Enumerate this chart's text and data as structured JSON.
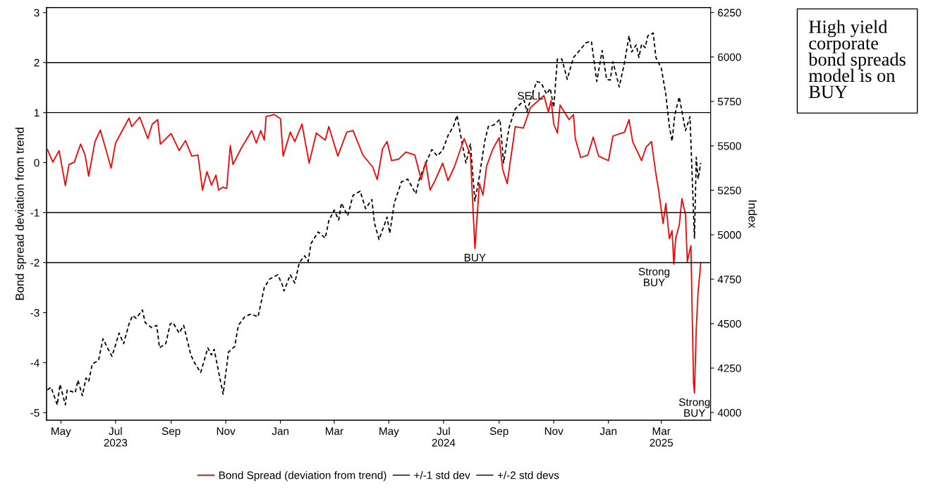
{
  "chart_data": {
    "type": "line",
    "title": "High yield\ncorporate\nbond spreads\nmodel is on\nBUY",
    "ylabel": "Bond spread deviation from trend",
    "y2label": "Index",
    "xlim": [
      "2023-04-15",
      "2025-04-25"
    ],
    "xticks": [
      {
        "value": "2023-05-01",
        "label": "May"
      },
      {
        "value": "2023-07-01",
        "label": "Jul\n2023"
      },
      {
        "value": "2023-09-01",
        "label": "Sep"
      },
      {
        "value": "2023-11-01",
        "label": "Nov"
      },
      {
        "value": "2024-01-01",
        "label": "Jan"
      },
      {
        "value": "2024-03-01",
        "label": "Mar"
      },
      {
        "value": "2024-05-01",
        "label": "May"
      },
      {
        "value": "2024-07-01",
        "label": "Jul\n2024"
      },
      {
        "value": "2024-09-01",
        "label": "Sep"
      },
      {
        "value": "2024-11-01",
        "label": "Nov"
      },
      {
        "value": "2025-01-01",
        "label": "Jan"
      },
      {
        "value": "2025-03-01",
        "label": "Mar\n2025"
      }
    ],
    "ylim": [
      -5.15,
      3.1
    ],
    "yticks": [
      -5,
      -4,
      -3,
      -2,
      -1,
      0,
      1,
      2,
      3
    ],
    "y2lim": [
      3957,
      6278
    ],
    "y2ticks": [
      4000,
      4250,
      4500,
      4750,
      5000,
      5250,
      5500,
      5750,
      6000,
      6250
    ],
    "grid": false,
    "legend": "bottom",
    "series": [
      {
        "color": "#000000",
        "axis": "y2",
        "line_style": "dashed",
        "x": [
          "2023-04-16",
          "2023-04-20",
          "2023-04-27",
          "2023-04-30",
          "2023-05-06",
          "2023-05-08",
          "2023-05-17",
          "2023-05-20",
          "2023-05-25",
          "2023-05-29",
          "2023-06-01",
          "2023-06-05",
          "2023-06-12",
          "2023-06-17",
          "2023-06-22",
          "2023-06-27",
          "2023-07-05",
          "2023-07-10",
          "2023-07-16",
          "2023-07-20",
          "2023-07-24",
          "2023-07-31",
          "2023-08-03",
          "2023-08-10",
          "2023-08-16",
          "2023-08-19",
          "2023-08-26",
          "2023-08-31",
          "2023-09-03",
          "2023-09-10",
          "2023-09-15",
          "2023-09-23",
          "2023-09-27",
          "2023-10-04",
          "2023-10-12",
          "2023-10-16",
          "2023-10-19",
          "2023-10-29",
          "2023-11-04",
          "2023-11-11",
          "2023-11-15",
          "2023-11-22",
          "2023-11-29",
          "2023-12-07",
          "2023-12-14",
          "2023-12-20",
          "2023-12-29",
          "2024-01-03",
          "2024-01-05",
          "2024-01-12",
          "2024-01-17",
          "2024-01-22",
          "2024-01-28",
          "2024-02-01",
          "2024-02-04",
          "2024-02-12",
          "2024-02-20",
          "2024-02-24",
          "2024-03-01",
          "2024-03-06",
          "2024-03-09",
          "2024-03-16",
          "2024-03-22",
          "2024-03-30",
          "2024-04-05",
          "2024-04-12",
          "2024-04-15",
          "2024-04-20",
          "2024-04-29",
          "2024-05-02",
          "2024-05-07",
          "2024-05-15",
          "2024-05-22",
          "2024-05-31",
          "2024-06-04",
          "2024-06-12",
          "2024-06-18",
          "2024-06-24",
          "2024-06-30",
          "2024-07-06",
          "2024-07-12",
          "2024-07-16",
          "2024-07-21",
          "2024-07-26",
          "2024-07-31",
          "2024-08-05",
          "2024-08-10",
          "2024-08-16",
          "2024-08-20",
          "2024-08-26",
          "2024-09-02",
          "2024-09-06",
          "2024-09-12",
          "2024-09-19",
          "2024-09-29",
          "2024-10-02",
          "2024-10-08",
          "2024-10-13",
          "2024-10-18",
          "2024-10-24",
          "2024-10-28",
          "2024-11-01",
          "2024-11-05",
          "2024-11-10",
          "2024-11-16",
          "2024-11-23",
          "2024-12-01",
          "2024-12-07",
          "2024-12-13",
          "2024-12-19",
          "2024-12-25",
          "2024-12-30",
          "2025-01-03",
          "2025-01-06",
          "2025-01-09",
          "2025-01-13",
          "2025-01-19",
          "2025-01-24",
          "2025-01-27",
          "2025-02-01",
          "2025-02-04",
          "2025-02-07",
          "2025-02-11",
          "2025-02-14",
          "2025-02-20",
          "2025-02-23",
          "2025-03-01",
          "2025-03-06",
          "2025-03-10",
          "2025-03-13",
          "2025-03-16",
          "2025-03-21",
          "2025-03-28",
          "2025-04-02",
          "2025-04-07",
          "2025-04-09",
          "2025-04-11",
          "2025-04-14"
        ],
        "values": [
          4127,
          4142,
          4043,
          4158,
          4043,
          4127,
          4111,
          4182,
          4095,
          4194,
          4174,
          4273,
          4293,
          4415,
          4364,
          4316,
          4447,
          4387,
          4498,
          4546,
          4530,
          4577,
          4506,
          4478,
          4490,
          4364,
          4387,
          4498,
          4506,
          4447,
          4490,
          4324,
          4281,
          4225,
          4364,
          4324,
          4356,
          4103,
          4340,
          4372,
          4490,
          4538,
          4554,
          4538,
          4704,
          4751,
          4775,
          4720,
          4684,
          4775,
          4728,
          4842,
          4882,
          4850,
          4949,
          5016,
          4981,
          5079,
          5139,
          5083,
          5178,
          5107,
          5222,
          5245,
          5147,
          5198,
          5064,
          4973,
          5099,
          5008,
          5178,
          5297,
          5313,
          5230,
          5313,
          5412,
          5479,
          5443,
          5475,
          5558,
          5609,
          5672,
          5534,
          5404,
          5511,
          5190,
          5329,
          5526,
          5609,
          5617,
          5649,
          5404,
          5601,
          5708,
          5756,
          5692,
          5791,
          5862,
          5854,
          5791,
          5823,
          5716,
          5989,
          5989,
          5874,
          5997,
          6044,
          6080,
          6088,
          5862,
          6036,
          5874,
          5870,
          5973,
          5914,
          5831,
          5969,
          6119,
          6028,
          6068,
          5997,
          6072,
          6052,
          6119,
          6135,
          5997,
          5937,
          5791,
          5609,
          5526,
          5672,
          5775,
          5586,
          5664,
          4981,
          5435,
          5313,
          5404
        ]
      },
      {
        "name": "Bond Spread (deviation from trend)",
        "color": "#ff0000",
        "line_style": "solid",
        "x": [
          "2023-04-16",
          "2023-04-22",
          "2023-04-29",
          "2023-05-06",
          "2023-05-10",
          "2023-05-16",
          "2023-05-23",
          "2023-05-28",
          "2023-06-01",
          "2023-06-08",
          "2023-06-14",
          "2023-06-22",
          "2023-06-26",
          "2023-07-01",
          "2023-07-07",
          "2023-07-16",
          "2023-07-19",
          "2023-07-28",
          "2023-08-06",
          "2023-08-11",
          "2023-08-17",
          "2023-08-20",
          "2023-09-01",
          "2023-09-10",
          "2023-09-17",
          "2023-09-24",
          "2023-10-01",
          "2023-10-06",
          "2023-10-11",
          "2023-10-16",
          "2023-10-21",
          "2023-10-24",
          "2023-10-29",
          "2023-11-02",
          "2023-11-06",
          "2023-11-09",
          "2023-11-18",
          "2023-11-30",
          "2023-12-05",
          "2023-12-10",
          "2023-12-14",
          "2023-12-16",
          "2023-12-25",
          "2024-01-01",
          "2024-01-04",
          "2024-01-12",
          "2024-01-17",
          "2024-01-25",
          "2024-02-02",
          "2024-02-10",
          "2024-02-20",
          "2024-02-24",
          "2024-03-05",
          "2024-03-15",
          "2024-03-22",
          "2024-04-02",
          "2024-04-13",
          "2024-04-18",
          "2024-04-24",
          "2024-04-29",
          "2024-05-04",
          "2024-05-12",
          "2024-05-20",
          "2024-05-30",
          "2024-06-06",
          "2024-06-11",
          "2024-06-16",
          "2024-06-22",
          "2024-06-30",
          "2024-07-06",
          "2024-07-13",
          "2024-07-24",
          "2024-07-31",
          "2024-08-05",
          "2024-08-10",
          "2024-08-14",
          "2024-08-18",
          "2024-08-25",
          "2024-09-01",
          "2024-09-05",
          "2024-09-10",
          "2024-09-19",
          "2024-09-28",
          "2024-10-06",
          "2024-10-21",
          "2024-10-26",
          "2024-10-29",
          "2024-11-01",
          "2024-11-05",
          "2024-11-08",
          "2024-11-18",
          "2024-11-23",
          "2024-11-25",
          "2024-12-01",
          "2024-12-09",
          "2024-12-15",
          "2024-12-21",
          "2025-01-01",
          "2025-01-06",
          "2025-01-19",
          "2025-01-24",
          "2025-01-28",
          "2025-02-07",
          "2025-02-12",
          "2025-02-18",
          "2025-02-23",
          "2025-02-26",
          "2025-03-03",
          "2025-03-06",
          "2025-03-10",
          "2025-03-13",
          "2025-03-15",
          "2025-03-17",
          "2025-03-21",
          "2025-03-24",
          "2025-03-28",
          "2025-03-30",
          "2025-04-03",
          "2025-04-06",
          "2025-04-07",
          "2025-04-09",
          "2025-04-11",
          "2025-04-14"
        ],
        "values": [
          0.26,
          0.01,
          0.24,
          -0.46,
          -0.04,
          0.01,
          0.37,
          0.15,
          -0.27,
          0.42,
          0.65,
          0.15,
          -0.11,
          0.39,
          0.59,
          0.89,
          0.72,
          0.91,
          0.48,
          0.77,
          0.86,
          0.37,
          0.58,
          0.24,
          0.44,
          0.13,
          0.15,
          -0.55,
          -0.18,
          -0.45,
          -0.25,
          -0.55,
          -0.49,
          -0.52,
          0.34,
          -0.04,
          0.28,
          0.64,
          0.39,
          0.64,
          0.45,
          0.92,
          0.96,
          0.88,
          0.13,
          0.61,
          0.42,
          0.77,
          -0.01,
          0.59,
          0.45,
          0.72,
          0.13,
          0.61,
          0.64,
          0.15,
          -0.09,
          -0.34,
          0.28,
          0.42,
          0.04,
          0.07,
          0.21,
          0.15,
          -0.34,
          0.01,
          -0.55,
          -0.34,
          -0.01,
          -0.36,
          -0.09,
          0.48,
          0.15,
          -1.72,
          -0.42,
          -0.65,
          -0.07,
          0.27,
          0.5,
          -0.14,
          -0.42,
          0.72,
          0.69,
          1.1,
          1.34,
          1.01,
          1.24,
          0.77,
          0.59,
          1.15,
          0.86,
          0.96,
          0.48,
          0.1,
          0.15,
          0.51,
          0.13,
          0.04,
          0.53,
          0.61,
          0.86,
          0.42,
          0.04,
          0.31,
          0.42,
          -0.23,
          -0.55,
          -1.22,
          -0.82,
          -1.52,
          -1.36,
          -2.03,
          -1.52,
          -1.25,
          -0.72,
          -1.04,
          -1.98,
          -1.66,
          -4.42,
          -4.61,
          -3.33,
          -2.6,
          -2.0
        ]
      }
    ],
    "ref_lines": [
      {
        "axis": "y",
        "value": 1,
        "label": "+/-1 std dev",
        "color": "#000000"
      },
      {
        "axis": "y",
        "value": -1,
        "color": "#000000"
      },
      {
        "axis": "y",
        "value": 2,
        "label": "+/-2 std devs",
        "color": "#000000"
      },
      {
        "axis": "y",
        "value": -2,
        "color": "#000000"
      }
    ],
    "annotations": [
      {
        "text": "SELL",
        "x": "2024-10-06",
        "y": 1.1
      },
      {
        "text": "BUY",
        "x": "2024-08-05",
        "y": -1.72
      },
      {
        "text": "Strong\nBUY",
        "x": "2025-02-21",
        "y": -2
      },
      {
        "text": "Strong\nBUY",
        "x": "2025-04-07",
        "y": -4.61
      }
    ]
  }
}
